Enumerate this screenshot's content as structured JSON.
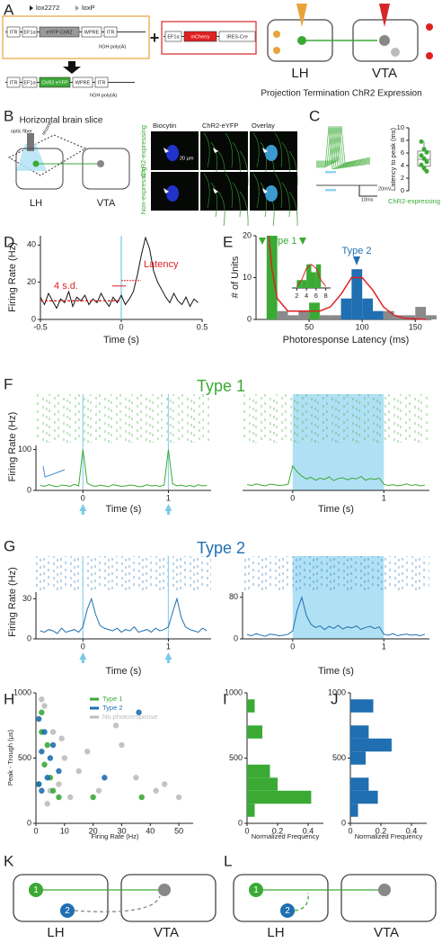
{
  "panels": {
    "A": {
      "label": "A",
      "markers": [
        "lox2272",
        "loxP"
      ],
      "virus1": [
        "ITR",
        "EF1α",
        "eYFP ChR2",
        "WPRE",
        "ITR"
      ],
      "virus1_polyA": "hGH poly(A)",
      "plus": "+",
      "virus2": [
        "EF1α",
        "mCherry",
        "IRES-Cre"
      ],
      "recombined": [
        "ITR",
        "EF1α",
        "ChR2 eYFP",
        "WPRE",
        "ITR"
      ],
      "recombined_polyA": "hGH poly(A)",
      "regions": [
        "LH",
        "VTA"
      ],
      "caption": "Projection Termination ChR2 Expression"
    },
    "B": {
      "label": "B",
      "title": "Horizontal brain slice",
      "fiber": "optic fiber",
      "electrode": "record",
      "regions": [
        "LH",
        "VTA"
      ],
      "columns": [
        "Biocytin",
        "ChR2-eYFP",
        "Overlay"
      ],
      "rows": [
        "ChR2-expressing",
        "Non-expressing"
      ],
      "scale_bar": "20 μm"
    },
    "C": {
      "label": "C",
      "type": "box",
      "ylabel": "Latency to peak (ms)",
      "category": "ChR2-expressing",
      "color": "#3aaa35",
      "ylim": [
        0,
        10
      ],
      "yticks": [
        0,
        2,
        4,
        6,
        8,
        10
      ],
      "points": [
        7.8,
        6.6,
        6.1,
        5.6,
        5.1,
        4.6,
        4.1,
        3.6,
        3.1
      ],
      "box": {
        "min": 3.1,
        "q1": 3.9,
        "median": 5,
        "q3": 6.3,
        "max": 7.8
      },
      "trace_scale": [
        "20mV",
        "10ms"
      ]
    },
    "D": {
      "label": "D",
      "type": "line",
      "xlabel": "Time (s)",
      "ylabel": "Firing Rate (Hz)",
      "color": "#111111",
      "xlim": [
        -0.5,
        0.5
      ],
      "xticks": [
        -0.5,
        0,
        0.5
      ],
      "ylim": [
        0,
        45
      ],
      "yticks": [
        0,
        20,
        40
      ],
      "x": [
        -0.5,
        -0.475,
        -0.45,
        -0.425,
        -0.4,
        -0.375,
        -0.35,
        -0.325,
        -0.3,
        -0.275,
        -0.25,
        -0.225,
        -0.2,
        -0.175,
        -0.15,
        -0.125,
        -0.1,
        -0.075,
        -0.05,
        -0.025,
        0,
        0.025,
        0.05,
        0.075,
        0.1,
        0.125,
        0.15,
        0.175,
        0.2,
        0.225,
        0.25,
        0.275,
        0.3,
        0.325,
        0.35,
        0.375,
        0.4,
        0.425,
        0.45,
        0.475
      ],
      "values": [
        12,
        8,
        14,
        10,
        6,
        11,
        9,
        15,
        7,
        12,
        10,
        13,
        8,
        11,
        9,
        14,
        10,
        7,
        12,
        9,
        13,
        8,
        11,
        15,
        24,
        35,
        44,
        38,
        26,
        20,
        16,
        12,
        9,
        14,
        10,
        8,
        12,
        7,
        11,
        9
      ],
      "baseline": 10,
      "threshold": 18,
      "threshold_label": "4 s.d.",
      "latency_label": "Latency"
    },
    "E": {
      "label": "E",
      "type": "histogram",
      "xlabel": "Photoresponse Latency (ms)",
      "ylabel": "# of Units",
      "xlim": [
        0,
        165
      ],
      "xticks": [
        50,
        100,
        150
      ],
      "ylim": [
        0,
        20
      ],
      "yticks": [
        0,
        10,
        20
      ],
      "bins": [
        10,
        20,
        30,
        40,
        50,
        60,
        70,
        80,
        90,
        100,
        110,
        120,
        130,
        140,
        150,
        160,
        170
      ],
      "values": [
        20,
        2,
        1,
        2,
        4,
        1,
        1,
        5,
        12,
        5,
        2,
        2,
        1,
        1,
        3,
        1
      ],
      "colors": [
        "#3aaa35",
        "#8a8a8a",
        "#8a8a8a",
        "#8a8a8a",
        "#3aaa35",
        "#8a8a8a",
        "#8a8a8a",
        "#1f6fb2",
        "#1f6fb2",
        "#1f6fb2",
        "#1f6fb2",
        "#8a8a8a",
        "#8a8a8a",
        "#8a8a8a",
        "#8a8a8a",
        "#8a8a8a"
      ],
      "fit": {
        "color": "#e02020",
        "x": [
          12,
          15,
          20,
          30,
          40,
          50,
          60,
          70,
          80,
          90,
          100,
          110,
          120,
          130,
          140,
          160
        ],
        "values": [
          20,
          12,
          5,
          2,
          2,
          2,
          2,
          3,
          6,
          10,
          10,
          7,
          3,
          1,
          0.3,
          0
        ]
      },
      "types": [
        {
          "name": "Type 1",
          "color": "#3aaa35"
        },
        {
          "name": "Type 2",
          "color": "#1f6fb2"
        }
      ],
      "inset": {
        "xlim": [
          1,
          9
        ],
        "xticks": [
          2,
          4,
          6,
          8
        ],
        "ylim": [
          0,
          4
        ],
        "bins": [
          2,
          3,
          4,
          5,
          6,
          7,
          8
        ],
        "values": [
          1,
          1,
          3,
          2,
          3,
          0
        ],
        "color": "#3aaa35",
        "fit": {
          "x": [
            2,
            3,
            4,
            5,
            6,
            7,
            8
          ],
          "values": [
            0.2,
            1,
            2.5,
            3,
            2.5,
            1,
            0.2
          ]
        }
      }
    },
    "F": {
      "label": "F",
      "title": "Type 1",
      "ylabel": "Firing Rate (Hz)",
      "color": "#3aaa35",
      "left": {
        "xlabel": "Time (s)",
        "xlim": [
          -0.55,
          1.5
        ],
        "xticks": [
          0,
          1
        ],
        "ylim": [
          0,
          110
        ],
        "yticks": [
          0,
          100
        ],
        "x": [
          -0.5,
          -0.45,
          -0.4,
          -0.35,
          -0.3,
          -0.25,
          -0.2,
          -0.15,
          -0.1,
          -0.05,
          0,
          0.05,
          0.1,
          0.15,
          0.2,
          0.25,
          0.3,
          0.35,
          0.4,
          0.45,
          0.5,
          0.55,
          0.6,
          0.65,
          0.7,
          0.75,
          0.8,
          0.85,
          0.9,
          0.95,
          1,
          1.05,
          1.1,
          1.15,
          1.2,
          1.25,
          1.3,
          1.35,
          1.4,
          1.45
        ],
        "values": [
          12,
          10,
          14,
          11,
          9,
          13,
          12,
          10,
          15,
          11,
          100,
          18,
          12,
          10,
          13,
          11,
          9,
          14,
          12,
          10,
          11,
          13,
          12,
          9,
          10,
          14,
          11,
          12,
          10,
          13,
          100,
          16,
          11,
          13,
          10,
          12,
          9,
          14,
          11,
          12
        ]
      },
      "right": {
        "xlabel": "Time (s)",
        "xlim": [
          -0.55,
          1.5
        ],
        "xticks": [
          0,
          1
        ],
        "ylim": [
          0,
          110
        ],
        "stim": [
          0,
          1
        ],
        "x": [
          -0.5,
          -0.45,
          -0.4,
          -0.35,
          -0.3,
          -0.25,
          -0.2,
          -0.15,
          -0.1,
          -0.05,
          0,
          0.05,
          0.1,
          0.15,
          0.2,
          0.25,
          0.3,
          0.35,
          0.4,
          0.45,
          0.5,
          0.55,
          0.6,
          0.65,
          0.7,
          0.75,
          0.8,
          0.85,
          0.9,
          0.95,
          1,
          1.05,
          1.1,
          1.15,
          1.2,
          1.25,
          1.3,
          1.35,
          1.4,
          1.45
        ],
        "values": [
          14,
          12,
          16,
          13,
          11,
          15,
          14,
          12,
          13,
          15,
          60,
          45,
          35,
          28,
          32,
          25,
          30,
          27,
          33,
          24,
          29,
          31,
          26,
          30,
          28,
          34,
          25,
          29,
          27,
          30,
          15,
          12,
          14,
          11,
          13,
          16,
          12,
          14,
          11,
          13
        ]
      }
    },
    "G": {
      "label": "G",
      "title": "Type 2",
      "ylabel": "Firing Rate (Hz)",
      "color": "#1f6fb2",
      "left": {
        "xlabel": "Time (s)",
        "xlim": [
          -0.55,
          1.5
        ],
        "xticks": [
          0,
          1
        ],
        "ylim": [
          0,
          35
        ],
        "yticks": [
          0,
          30
        ],
        "x": [
          -0.5,
          -0.45,
          -0.4,
          -0.35,
          -0.3,
          -0.25,
          -0.2,
          -0.15,
          -0.1,
          -0.05,
          0,
          0.05,
          0.1,
          0.15,
          0.2,
          0.25,
          0.3,
          0.35,
          0.4,
          0.45,
          0.5,
          0.55,
          0.6,
          0.65,
          0.7,
          0.75,
          0.8,
          0.85,
          0.9,
          0.95,
          1,
          1.05,
          1.1,
          1.15,
          1.2,
          1.25,
          1.3,
          1.35,
          1.4,
          1.45
        ],
        "values": [
          6,
          5,
          7,
          6,
          4,
          8,
          5,
          6,
          7,
          5,
          9,
          22,
          30,
          18,
          10,
          8,
          7,
          6,
          8,
          5,
          7,
          6,
          9,
          5,
          6,
          7,
          5,
          8,
          6,
          7,
          9,
          20,
          30,
          16,
          9,
          7,
          6,
          5,
          8,
          6
        ]
      },
      "right": {
        "xlabel": "Time (s)",
        "xlim": [
          -0.55,
          1.5
        ],
        "xticks": [
          0,
          1
        ],
        "ylim": [
          0,
          90
        ],
        "yticks": [
          0,
          80
        ],
        "stim": [
          0,
          1
        ],
        "x": [
          -0.5,
          -0.45,
          -0.4,
          -0.35,
          -0.3,
          -0.25,
          -0.2,
          -0.15,
          -0.1,
          -0.05,
          0,
          0.05,
          0.1,
          0.15,
          0.2,
          0.25,
          0.3,
          0.35,
          0.4,
          0.45,
          0.5,
          0.55,
          0.6,
          0.65,
          0.7,
          0.75,
          0.8,
          0.85,
          0.9,
          0.95,
          1,
          1.05,
          1.1,
          1.15,
          1.2,
          1.25,
          1.3,
          1.35,
          1.4,
          1.45
        ],
        "values": [
          8,
          6,
          10,
          7,
          5,
          9,
          8,
          6,
          7,
          9,
          15,
          55,
          80,
          45,
          28,
          22,
          25,
          18,
          24,
          20,
          26,
          19,
          23,
          21,
          25,
          18,
          22,
          24,
          20,
          23,
          9,
          7,
          10,
          6,
          8,
          9,
          7,
          8,
          6,
          9
        ]
      }
    },
    "H": {
      "label": "H",
      "type": "scatter",
      "xlabel": "Firing Rate (Hz)",
      "ylabel": "Peak - Trough (μs)",
      "xlim": [
        0,
        55
      ],
      "xticks": [
        0,
        10,
        20,
        30,
        40,
        50
      ],
      "ylim": [
        0,
        1000
      ],
      "yticks": [
        0,
        500,
        1000
      ],
      "series": [
        {
          "name": "No photoresponse",
          "color": "#bdbdbd",
          "x": [
            3,
            6,
            10,
            15,
            22,
            30,
            42,
            50,
            2,
            4,
            8,
            12,
            18,
            28,
            35,
            45,
            5,
            9
          ],
          "y": [
            900,
            700,
            500,
            400,
            250,
            600,
            250,
            200,
            950,
            150,
            300,
            200,
            550,
            750,
            350,
            300,
            250,
            650
          ]
        },
        {
          "name": "Type 1",
          "color": "#3aaa35",
          "x": [
            2,
            4,
            1,
            6,
            3,
            8,
            20,
            37,
            2,
            5
          ],
          "y": [
            850,
            600,
            300,
            250,
            450,
            200,
            200,
            200,
            700,
            350
          ]
        },
        {
          "name": "Type 2",
          "color": "#1f6fb2",
          "x": [
            1,
            3,
            2,
            5,
            4,
            36,
            8,
            24,
            2,
            1,
            6
          ],
          "y": [
            800,
            700,
            550,
            500,
            350,
            850,
            400,
            350,
            250,
            300,
            600
          ]
        }
      ]
    },
    "I": {
      "label": "I",
      "type": "hbar_hist",
      "xlabel": "Normalized Frequency",
      "color": "#3aaa35",
      "xlim": [
        0,
        0.5
      ],
      "xticks": [
        0,
        0.2,
        0.4
      ],
      "ylim": [
        0,
        1000
      ],
      "yticks": [
        0,
        500,
        1000
      ],
      "bins": [
        50,
        150,
        250,
        350,
        450,
        550,
        650,
        750,
        850,
        950
      ],
      "values": [
        0.05,
        0.42,
        0.2,
        0.15,
        0,
        0,
        0.1,
        0,
        0.05
      ]
    },
    "J": {
      "label": "J",
      "type": "hbar_hist",
      "xlabel": "Normalized Frequency",
      "color": "#1f6fb2",
      "xlim": [
        0,
        0.5
      ],
      "xticks": [
        0,
        0.2,
        0.4
      ],
      "ylim": [
        0,
        1000
      ],
      "yticks": [
        0,
        500,
        1000
      ],
      "bins": [
        50,
        150,
        250,
        350,
        450,
        550,
        650,
        750,
        850,
        950
      ],
      "values": [
        0.05,
        0.18,
        0.12,
        0,
        0.1,
        0.27,
        0.12,
        0,
        0.15
      ]
    },
    "K": {
      "label": "K",
      "nodes": [
        "1",
        "2"
      ],
      "regions": [
        "LH",
        "VTA"
      ]
    },
    "L": {
      "label": "L",
      "nodes": [
        "1",
        "2"
      ],
      "regions": [
        "LH",
        "VTA"
      ]
    }
  }
}
